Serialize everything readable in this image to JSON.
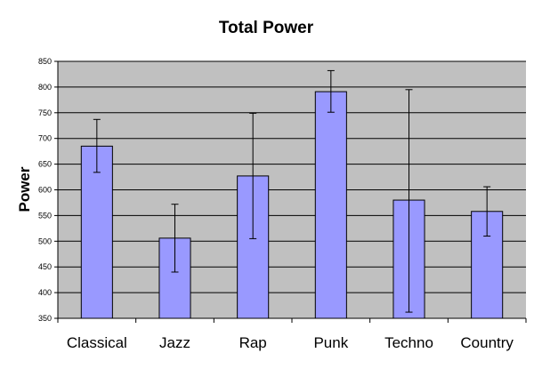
{
  "chart_data": {
    "type": "bar",
    "title": "Total Power",
    "xlabel": "",
    "ylabel": "Power",
    "categories": [
      "Classical",
      "Jazz",
      "Rap",
      "Punk",
      "Techno",
      "Country"
    ],
    "values": [
      685,
      506,
      627,
      791,
      580,
      558
    ],
    "error_low": [
      634,
      440,
      505,
      751,
      362,
      510
    ],
    "error_high": [
      737,
      572,
      749,
      832,
      795,
      606
    ],
    "ylim": [
      350,
      850
    ],
    "yticks": [
      350,
      400,
      450,
      500,
      550,
      600,
      650,
      700,
      750,
      800,
      850
    ],
    "grid": true,
    "legend": "none",
    "colors": {
      "bar_fill": "#9999ff",
      "bar_stroke": "#000000",
      "plot_background": "#c0c0c0",
      "gridline": "#000000",
      "errorbar": "#000000"
    }
  }
}
